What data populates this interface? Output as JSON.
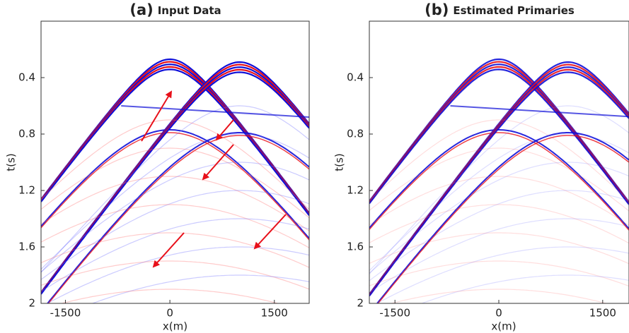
{
  "chart_data": [
    {
      "type": "image",
      "panel_label": "(a)",
      "title": "Input Data",
      "xlabel": "x(m)",
      "ylabel": "t(s)",
      "xlim": [
        -1850,
        2000
      ],
      "xticks": [
        -1500,
        0,
        1500
      ],
      "ylim": [
        0,
        2
      ],
      "yticks": [
        0.4,
        0.8,
        1.2,
        1.6,
        2
      ],
      "y_inverted": true
    },
    {
      "type": "image",
      "panel_label": "(b)",
      "title": "Estimated Primaries",
      "xlabel": "x(m)",
      "ylabel": "t(s)",
      "xlim": [
        -1870,
        1880
      ],
      "xticks": [
        -1500,
        0,
        1500
      ],
      "ylim": [
        0,
        2
      ],
      "yticks": [
        0.4,
        0.8,
        1.2,
        1.6,
        2
      ],
      "y_inverted": true
    }
  ]
}
